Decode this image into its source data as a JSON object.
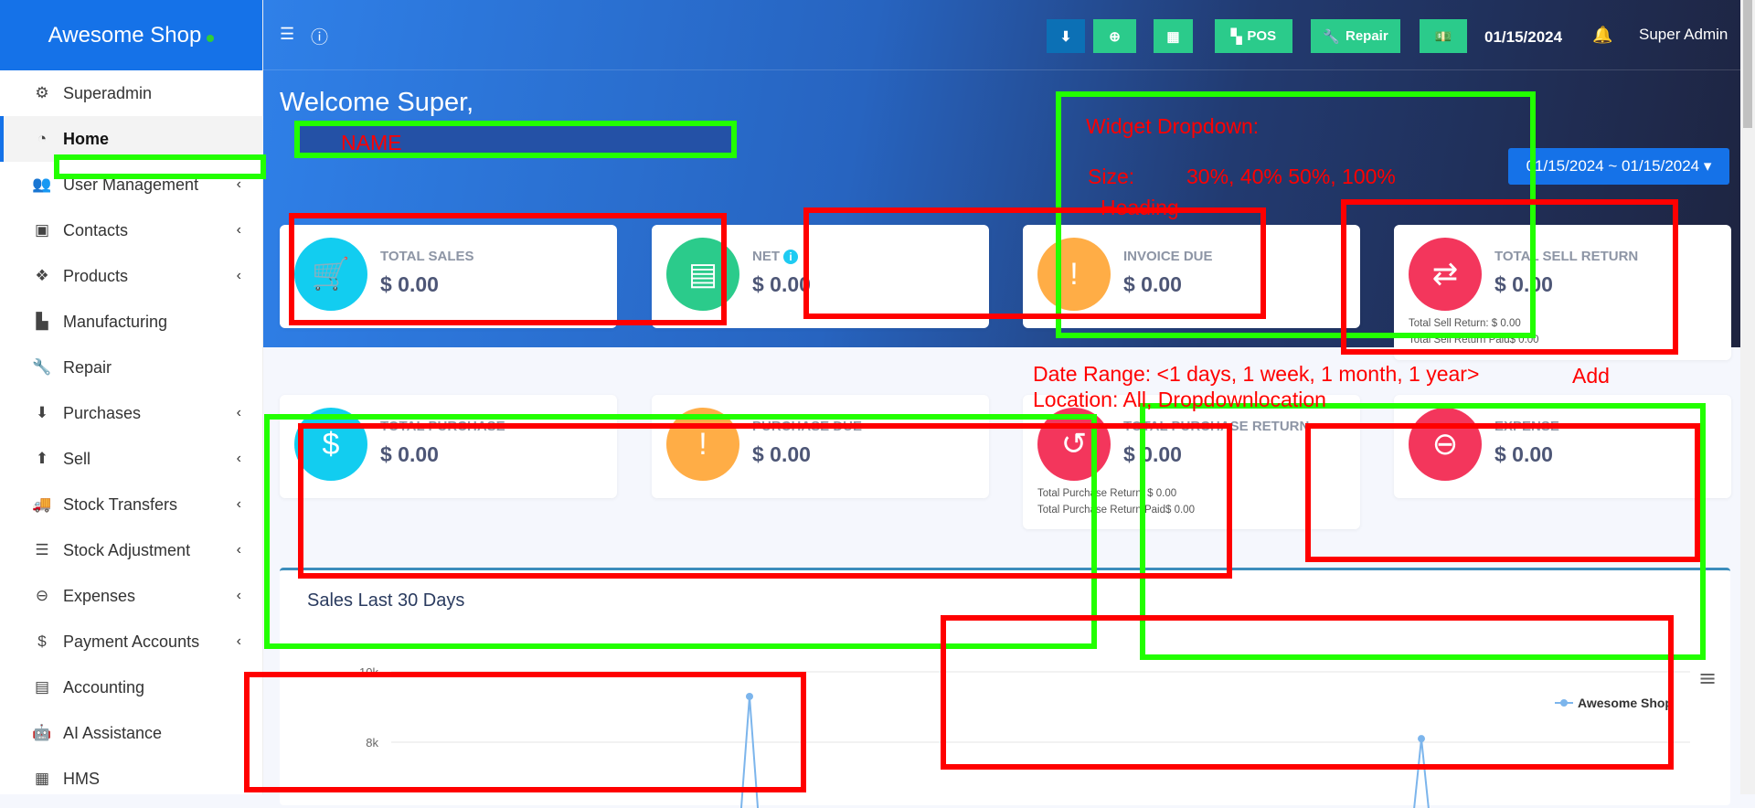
{
  "brand": {
    "name": "Awesome Shop"
  },
  "sidebar": {
    "items": [
      {
        "label": "Superadmin",
        "icon": "users-cog-icon",
        "glyph": "⚙",
        "chev": false
      },
      {
        "label": "Home",
        "icon": "dashboard-icon",
        "glyph": "◔",
        "chev": false,
        "active": true
      },
      {
        "label": "User Management",
        "icon": "users-icon",
        "glyph": "👥",
        "chev": true
      },
      {
        "label": "Contacts",
        "icon": "address-book-icon",
        "glyph": "▣",
        "chev": true
      },
      {
        "label": "Products",
        "icon": "cubes-icon",
        "glyph": "❖",
        "chev": true
      },
      {
        "label": "Manufacturing",
        "icon": "industry-icon",
        "glyph": "▙",
        "chev": false
      },
      {
        "label": "Repair",
        "icon": "wrench-icon",
        "glyph": "🔧",
        "chev": false
      },
      {
        "label": "Purchases",
        "icon": "arrow-circle-down-icon",
        "glyph": "⬇",
        "chev": true
      },
      {
        "label": "Sell",
        "icon": "arrow-circle-up-icon",
        "glyph": "⬆",
        "chev": true
      },
      {
        "label": "Stock Transfers",
        "icon": "truck-icon",
        "glyph": "🚚",
        "chev": true
      },
      {
        "label": "Stock Adjustment",
        "icon": "database-icon",
        "glyph": "☰",
        "chev": true
      },
      {
        "label": "Expenses",
        "icon": "minus-circle-icon",
        "glyph": "⊖",
        "chev": true
      },
      {
        "label": "Payment Accounts",
        "icon": "money-check-icon",
        "glyph": "$",
        "chev": true
      },
      {
        "label": "Accounting",
        "icon": "credit-card-icon",
        "glyph": "▤",
        "chev": false
      },
      {
        "label": "AI Assistance",
        "icon": "robot-icon",
        "glyph": "🤖",
        "chev": false
      },
      {
        "label": "HMS",
        "icon": "building-icon",
        "glyph": "▦",
        "chev": false
      }
    ]
  },
  "header": {
    "menu_icon": "☰",
    "info_icon": "ⓘ",
    "buttons": [
      {
        "name": "download",
        "label": "",
        "glyph": "⬇",
        "color": "#0c70b5"
      },
      {
        "name": "add",
        "label": "",
        "glyph": "⊕",
        "color": "#2bcb8b"
      },
      {
        "name": "calculator",
        "label": "",
        "glyph": "▦",
        "color": "#2bcb8b"
      },
      {
        "name": "pos",
        "label": "POS",
        "glyph": "▚",
        "color": "#2bcb8b"
      },
      {
        "name": "repair",
        "label": "Repair",
        "glyph": "🔧",
        "color": "#2bcb8b"
      },
      {
        "name": "cash",
        "label": "",
        "glyph": "💵",
        "color": "#2bcb8b"
      }
    ],
    "date": "01/15/2024",
    "user": "Super Admin"
  },
  "welcome": "Welcome Super,",
  "date_range": "01/15/2024 ~ 01/15/2024 ▾",
  "cards": [
    {
      "label": "TOTAL SALES",
      "value": "$ 0.00",
      "color": "#12cdf0",
      "glyph": "🛒",
      "icon": "cart-icon"
    },
    {
      "label": "NET",
      "value": "$ 0.00",
      "color": "#2bcb8b",
      "glyph": "▤",
      "icon": "document-icon",
      "info": "i"
    },
    {
      "label": "INVOICE DUE",
      "value": "$ 0.00",
      "color": "#ffad46",
      "glyph": "!",
      "icon": "invoice-exclamation-icon"
    },
    {
      "label": "TOTAL SELL RETURN",
      "value": "$ 0.00",
      "color": "#f3365c",
      "glyph": "⇄",
      "icon": "exchange-icon",
      "subs": [
        "Total Sell Return: $ 0.00",
        "Total Sell Return Paid$ 0.00"
      ]
    },
    {
      "label": "TOTAL PURCHASE",
      "value": "$ 0.00",
      "color": "#12cdf0",
      "glyph": "$",
      "icon": "money-bill-icon"
    },
    {
      "label": "PURCHASE DUE",
      "value": "$ 0.00",
      "color": "#ffad46",
      "glyph": "!",
      "icon": "exclamation-icon"
    },
    {
      "label": "TOTAL PURCHASE RETURN",
      "value": "$ 0.00",
      "color": "#f3365c",
      "glyph": "↺",
      "icon": "undo-icon",
      "subs": [
        "Total Purchase Return: $ 0.00",
        "Total Purchase Return Paid$ 0.00"
      ]
    },
    {
      "label": "EXPENSE",
      "value": "$ 0.00",
      "color": "#f3365c",
      "glyph": "⊖",
      "icon": "minus-circle-icon"
    }
  ],
  "sales_chart": {
    "title": "Sales Last 30 Days",
    "y_ticks": [
      "10k",
      "8k"
    ],
    "legend": "Awesome Shop",
    "series_color": "#7cb5ec",
    "menu_icon": "≡",
    "points": [
      {
        "day": 9,
        "value": 9300
      },
      {
        "day": 24,
        "value": 8100
      }
    ]
  },
  "annotations": {
    "name": "NAME",
    "widget_dropdown": "Widget Dropdown:",
    "size": "Size:",
    "size_options": "30%, 40% 50%, 100%",
    "heading": "Heading",
    "date_range": "Date Range: <1 days, 1 week, 1 month, 1 year>",
    "location": "Location: All, Dropdownlocation",
    "add": "Add"
  }
}
